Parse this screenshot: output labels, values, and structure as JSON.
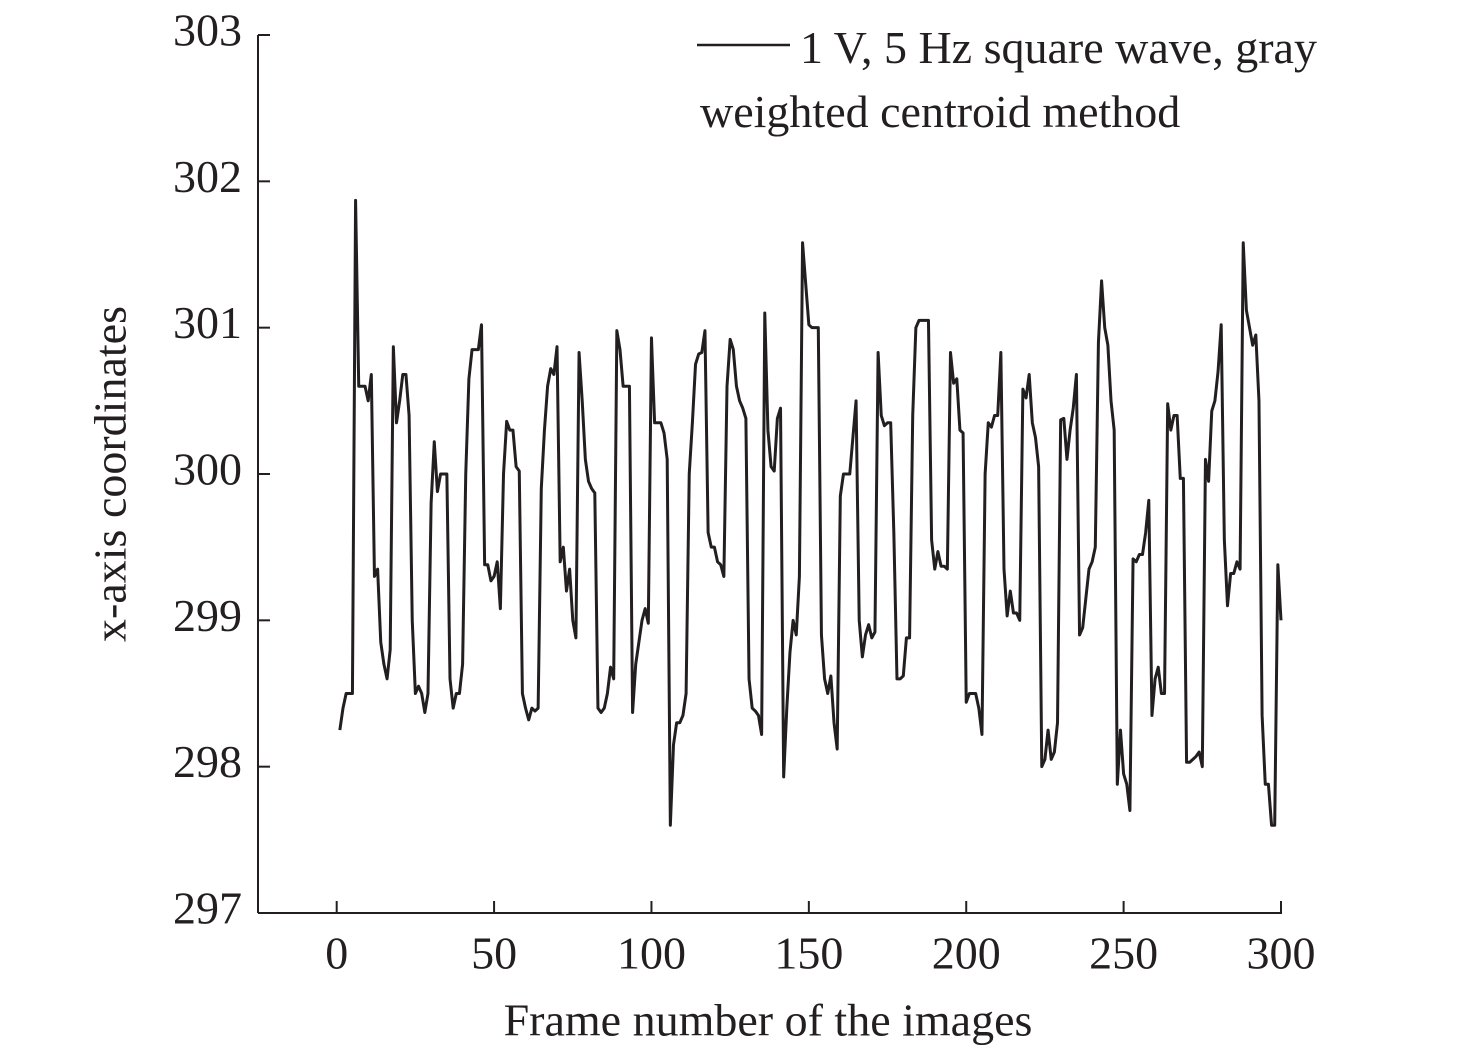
{
  "chart_data": {
    "type": "line",
    "xlabel": "Frame number of the images",
    "ylabel": "x-axis coordinates",
    "xlim": [
      -25,
      300
    ],
    "xticks": [
      0,
      50,
      100,
      150,
      200,
      250,
      300
    ],
    "ylim": [
      297,
      303
    ],
    "yticks": [
      297,
      298,
      299,
      300,
      301,
      302,
      303
    ],
    "legend": "top-right",
    "x": [
      1,
      2,
      3,
      4,
      5,
      6,
      7,
      8,
      9,
      10,
      11,
      12,
      13,
      14,
      15,
      16,
      17,
      18,
      19,
      20,
      21,
      22,
      23,
      24,
      25,
      26,
      27,
      28,
      29,
      30,
      31,
      32,
      33,
      34,
      35,
      36,
      37,
      38,
      39,
      40,
      41,
      42,
      43,
      44,
      45,
      46,
      47,
      48,
      49,
      50,
      51,
      52,
      53,
      54,
      55,
      56,
      57,
      58,
      59,
      60,
      61,
      62,
      63,
      64,
      65,
      66,
      67,
      68,
      69,
      70,
      71,
      72,
      73,
      74,
      75,
      76,
      77,
      78,
      79,
      80,
      81,
      82,
      83,
      84,
      85,
      86,
      87,
      88,
      89,
      90,
      91,
      92,
      93,
      94,
      95,
      96,
      97,
      98,
      99,
      100,
      101,
      102,
      103,
      104,
      105,
      106,
      107,
      108,
      109,
      110,
      111,
      112,
      113,
      114,
      115,
      116,
      117,
      118,
      119,
      120,
      121,
      122,
      123,
      124,
      125,
      126,
      127,
      128,
      129,
      130,
      131,
      132,
      133,
      134,
      135,
      136,
      137,
      138,
      139,
      140,
      141,
      142,
      143,
      144,
      145,
      146,
      147,
      148,
      149,
      150,
      151,
      152,
      153,
      154,
      155,
      156,
      157,
      158,
      159,
      160,
      161,
      162,
      163,
      164,
      165,
      166,
      167,
      168,
      169,
      170,
      171,
      172,
      173,
      174,
      175,
      176,
      177,
      178,
      179,
      180,
      181,
      182,
      183,
      184,
      185,
      186,
      187,
      188,
      189,
      190,
      191,
      192,
      193,
      194,
      195,
      196,
      197,
      198,
      199,
      200,
      201,
      202,
      203,
      204,
      205,
      206,
      207,
      208,
      209,
      210,
      211,
      212,
      213,
      214,
      215,
      216,
      217,
      218,
      219,
      220,
      221,
      222,
      223,
      224,
      225,
      226,
      227,
      228,
      229,
      230,
      231,
      232,
      233,
      234,
      235,
      236,
      237,
      238,
      239,
      240,
      241,
      242,
      243,
      244,
      245,
      246,
      247,
      248,
      249,
      250,
      251,
      252,
      253,
      254,
      255,
      256,
      257,
      258,
      259,
      260,
      261,
      262,
      263,
      264,
      265,
      266,
      267,
      268,
      269,
      270,
      271,
      272,
      273,
      274,
      275,
      276,
      277,
      278,
      279,
      280,
      281,
      282,
      283,
      284,
      285,
      286,
      287,
      288,
      289,
      290,
      291,
      292,
      293,
      294,
      295,
      296,
      297,
      298,
      299,
      300
    ],
    "series": [
      {
        "name": "1 V, 5 Hz square wave, gray weighted centroid method",
        "color": "#231f20",
        "values": [
          298.25,
          298.4,
          298.5,
          298.5,
          298.5,
          301.87,
          300.6,
          300.6,
          300.6,
          300.5,
          300.68,
          299.3,
          299.35,
          298.85,
          298.7,
          298.6,
          298.8,
          300.87,
          300.35,
          300.5,
          300.68,
          300.68,
          300.4,
          299.0,
          298.5,
          298.55,
          298.5,
          298.37,
          298.5,
          299.8,
          300.22,
          299.88,
          300.0,
          300.0,
          300.0,
          298.6,
          298.4,
          298.5,
          298.5,
          298.7,
          300.0,
          300.65,
          300.85,
          300.85,
          300.85,
          301.02,
          299.38,
          299.38,
          299.27,
          299.3,
          299.4,
          299.08,
          300.0,
          300.36,
          300.3,
          300.3,
          300.05,
          300.02,
          298.5,
          298.4,
          298.32,
          298.4,
          298.38,
          298.4,
          299.9,
          300.3,
          300.6,
          300.72,
          300.68,
          300.87,
          299.4,
          299.5,
          299.2,
          299.35,
          299.0,
          298.88,
          300.83,
          300.5,
          300.1,
          299.95,
          299.9,
          299.87,
          298.4,
          298.37,
          298.4,
          298.5,
          298.68,
          298.6,
          300.98,
          300.85,
          300.6,
          300.6,
          300.6,
          298.37,
          298.7,
          298.85,
          299.0,
          299.08,
          298.98,
          300.93,
          300.35,
          300.35,
          300.35,
          300.28,
          300.1,
          297.6,
          298.15,
          298.3,
          298.3,
          298.35,
          298.5,
          300.0,
          300.35,
          300.75,
          300.82,
          300.83,
          300.98,
          299.6,
          299.5,
          299.5,
          299.4,
          299.38,
          299.3,
          300.6,
          300.92,
          300.85,
          300.6,
          300.5,
          300.45,
          300.38,
          298.6,
          298.4,
          298.38,
          298.35,
          298.22,
          301.1,
          300.3,
          300.05,
          300.02,
          300.38,
          300.45,
          297.93,
          298.4,
          298.78,
          299.0,
          298.9,
          299.3,
          301.58,
          301.3,
          301.02,
          301.0,
          301.0,
          301.0,
          298.9,
          298.6,
          298.5,
          298.62,
          298.3,
          298.12,
          299.85,
          300.0,
          300.0,
          300.0,
          300.25,
          300.5,
          299.0,
          298.75,
          298.9,
          298.97,
          298.88,
          298.92,
          300.83,
          300.4,
          300.33,
          300.35,
          300.35,
          299.6,
          298.6,
          298.6,
          298.62,
          298.88,
          298.88,
          300.4,
          301.0,
          301.05,
          301.05,
          301.05,
          301.05,
          299.55,
          299.35,
          299.47,
          299.37,
          299.37,
          299.35,
          300.83,
          300.62,
          300.65,
          300.3,
          300.28,
          298.44,
          298.5,
          298.5,
          298.5,
          298.4,
          298.22,
          300.0,
          300.35,
          300.32,
          300.4,
          300.4,
          300.83,
          299.35,
          299.03,
          299.2,
          299.05,
          299.05,
          299.0,
          300.58,
          300.52,
          300.68,
          300.35,
          300.25,
          300.05,
          298.0,
          298.05,
          298.25,
          298.05,
          298.1,
          298.3,
          300.37,
          300.38,
          300.1,
          300.3,
          300.45,
          300.68,
          298.9,
          298.95,
          299.15,
          299.35,
          299.4,
          299.5,
          300.9,
          301.32,
          301.0,
          300.88,
          300.5,
          300.3,
          297.88,
          298.25,
          297.95,
          297.88,
          297.7,
          299.42,
          299.4,
          299.45,
          299.45,
          299.6,
          299.82,
          298.35,
          298.6,
          298.68,
          298.5,
          298.5,
          300.48,
          300.3,
          300.4,
          300.4,
          299.97,
          299.97,
          298.03,
          298.03,
          298.05,
          298.07,
          298.1,
          298.0,
          300.1,
          299.95,
          300.43,
          300.5,
          300.7,
          301.02,
          299.55,
          299.1,
          299.32,
          299.32,
          299.4,
          299.35,
          301.58,
          301.12,
          301.0,
          300.88,
          300.95,
          300.5,
          298.35,
          297.88,
          297.88,
          297.6,
          297.6,
          299.38,
          299.0
        ]
      }
    ]
  }
}
